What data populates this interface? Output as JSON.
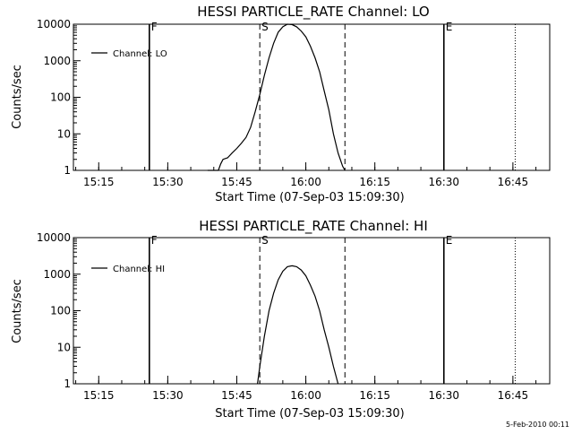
{
  "chart_data": [
    {
      "type": "line",
      "title": "HESSI PARTICLE_RATE Channel: LO",
      "xlabel": "Start Time (07-Sep-03 15:09:30)",
      "ylabel": "Counts/sec",
      "y_scale": "log",
      "ylim": [
        1,
        10000
      ],
      "y_ticks": [
        "1",
        "10",
        "100",
        "1000",
        "10000"
      ],
      "xlim": [
        "15:09:30",
        "16:53:00"
      ],
      "x_ticks": [
        "15:15",
        "15:30",
        "15:45",
        "16:00",
        "16:15",
        "16:30",
        "16:45"
      ],
      "legend_position": "top-left",
      "series": [
        {
          "name": "Channel: LO",
          "x": [
            "15:38:40",
            "15:41:00",
            "15:41:30",
            "15:42:00",
            "15:43:00",
            "15:44:00",
            "15:45:00",
            "15:46:00",
            "15:47:00",
            "15:48:00",
            "15:49:00",
            "15:50:00",
            "15:51:00",
            "15:52:00",
            "15:53:00",
            "15:54:00",
            "15:55:00",
            "15:56:00",
            "15:57:00",
            "15:58:00",
            "15:59:00",
            "16:00:00",
            "16:01:00",
            "16:02:00",
            "16:03:00",
            "16:04:00",
            "16:05:00",
            "16:06:00",
            "16:07:00",
            "16:08:00",
            "16:08:30"
          ],
          "y": [
            1,
            1,
            1.5,
            2,
            2.2,
            3,
            4,
            5.5,
            8,
            15,
            40,
            120,
            400,
            1200,
            3000,
            6000,
            8500,
            10000,
            9800,
            8500,
            6500,
            4500,
            2500,
            1200,
            500,
            150,
            45,
            10,
            3,
            1.3,
            1
          ]
        }
      ],
      "markers": [
        {
          "label": "F",
          "x": "15:26:00",
          "style": "solid"
        },
        {
          "label": "S",
          "x": "15:50:00",
          "style": "dashed"
        },
        {
          "label": "",
          "x": "16:08:30",
          "style": "dashed"
        },
        {
          "label": "E",
          "x": "16:30:00",
          "style": "solid"
        },
        {
          "label": "",
          "x": "16:45:30",
          "style": "dotted"
        }
      ]
    },
    {
      "type": "line",
      "title": "HESSI PARTICLE_RATE Channel: HI",
      "xlabel": "Start Time (07-Sep-03 15:09:30)",
      "ylabel": "Counts/sec",
      "y_scale": "log",
      "ylim": [
        1,
        10000
      ],
      "y_ticks": [
        "1",
        "10",
        "100",
        "1000",
        "10000"
      ],
      "xlim": [
        "15:09:30",
        "16:53:00"
      ],
      "x_ticks": [
        "15:15",
        "15:30",
        "15:45",
        "16:00",
        "16:15",
        "16:30",
        "16:45"
      ],
      "legend_position": "top-left",
      "series": [
        {
          "name": "Channel: HI",
          "x": [
            "15:49:30",
            "15:50:00",
            "15:51:00",
            "15:52:00",
            "15:53:00",
            "15:54:00",
            "15:55:00",
            "15:56:00",
            "15:57:00",
            "15:58:00",
            "15:59:00",
            "16:00:00",
            "16:01:00",
            "16:02:00",
            "16:03:00",
            "16:04:00",
            "16:05:00",
            "16:06:00",
            "16:07:00"
          ],
          "y": [
            1,
            3,
            20,
            100,
            300,
            700,
            1200,
            1600,
            1700,
            1600,
            1300,
            900,
            500,
            250,
            100,
            30,
            10,
            3,
            1
          ]
        }
      ],
      "markers": [
        {
          "label": "F",
          "x": "15:26:00",
          "style": "solid"
        },
        {
          "label": "S",
          "x": "15:50:00",
          "style": "dashed"
        },
        {
          "label": "",
          "x": "16:08:30",
          "style": "dashed"
        },
        {
          "label": "E",
          "x": "16:30:00",
          "style": "solid"
        },
        {
          "label": "",
          "x": "16:45:30",
          "style": "dotted"
        }
      ]
    }
  ],
  "footer": {
    "timestamp": "5-Feb-2010 00:11"
  }
}
